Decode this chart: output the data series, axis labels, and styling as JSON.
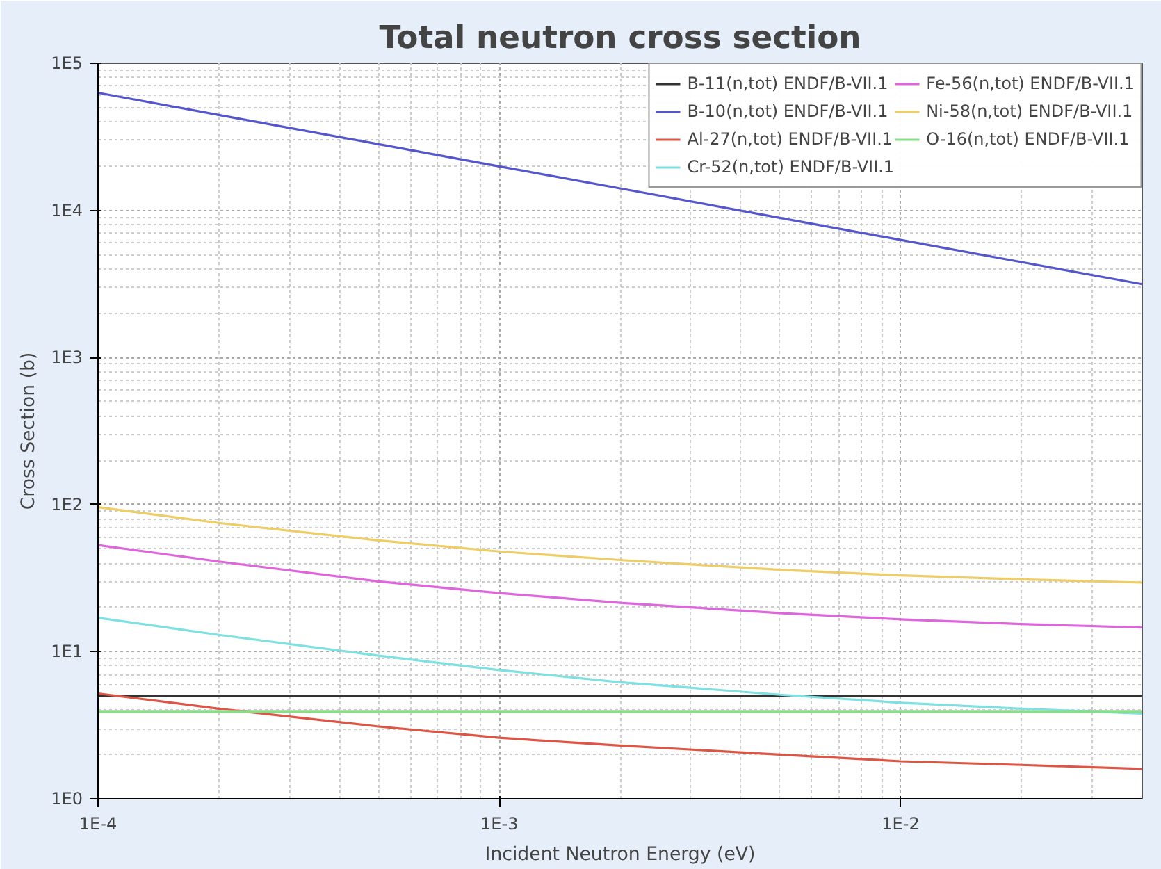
{
  "chart_data": {
    "type": "line",
    "title": "Total neutron cross section",
    "xlabel": "Incident Neutron Energy (eV)",
    "ylabel": "Cross Section (b)",
    "x": [
      0.0001,
      0.0002,
      0.0005,
      0.001,
      0.002,
      0.005,
      0.01,
      0.02,
      0.04
    ],
    "series": [
      {
        "name": "B-11(n,tot) ENDF/B-VII.1",
        "color": "#333333",
        "values": [
          5.0,
          5.0,
          5.0,
          5.0,
          5.0,
          5.0,
          5.0,
          5.0,
          5.0
        ]
      },
      {
        "name": "B-10(n,tot) ENDF/B-VII.1",
        "color": "#5555cc",
        "values": [
          63000,
          44500,
          28200,
          19900,
          14100,
          8900,
          6300,
          4450,
          3150
        ]
      },
      {
        "name": "Al-27(n,tot) ENDF/B-VII.1",
        "color": "#dd5544",
        "values": [
          5.2,
          4.1,
          3.1,
          2.6,
          2.3,
          2.0,
          1.8,
          1.7,
          1.6
        ]
      },
      {
        "name": "Cr-52(n,tot) ENDF/B-VII.1",
        "color": "#7ee0e0",
        "values": [
          17,
          13,
          9.4,
          7.5,
          6.2,
          5.1,
          4.5,
          4.1,
          3.8
        ]
      },
      {
        "name": "Fe-56(n,tot) ENDF/B-VII.1",
        "color": "#dd66dd",
        "values": [
          53,
          41,
          30,
          25,
          21.5,
          18.3,
          16.6,
          15.4,
          14.6
        ]
      },
      {
        "name": "Ni-58(n,tot) ENDF/B-VII.1",
        "color": "#eecc66",
        "values": [
          96,
          75,
          57,
          48,
          42,
          36,
          33,
          31,
          29.5
        ]
      },
      {
        "name": "O-16(n,tot) ENDF/B-VII.1",
        "color": "#88dd88",
        "values": [
          3.9,
          3.9,
          3.9,
          3.9,
          3.9,
          3.9,
          3.9,
          3.9,
          3.9
        ]
      }
    ],
    "xlim": [
      0.0001,
      0.04
    ],
    "ylim": [
      1,
      100000
    ],
    "xticks": [
      {
        "value": 0.0001,
        "label": "1E-4"
      },
      {
        "value": 0.001,
        "label": "1E-3"
      },
      {
        "value": 0.01,
        "label": "1E-2"
      }
    ],
    "yticks": [
      {
        "value": 1,
        "label": "1E0"
      },
      {
        "value": 10,
        "label": "1E1"
      },
      {
        "value": 100,
        "label": "1E2"
      },
      {
        "value": 1000,
        "label": "1E3"
      },
      {
        "value": 10000,
        "label": "1E4"
      },
      {
        "value": 100000,
        "label": "1E5"
      }
    ],
    "log": "xy",
    "grid": true,
    "legend": "top right",
    "marker": "none",
    "line_style": "solid"
  }
}
